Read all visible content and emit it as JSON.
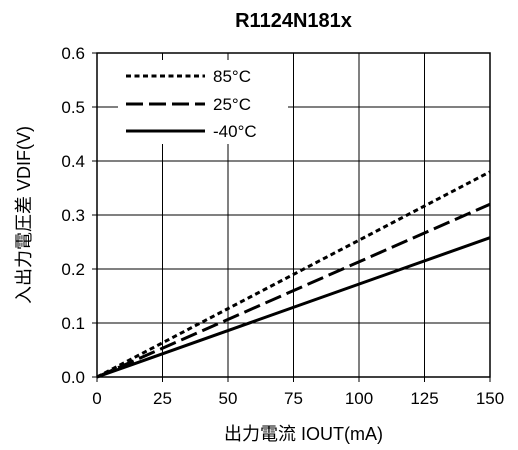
{
  "chart_data": {
    "type": "line",
    "title": "R1124N181x",
    "xlabel": "出力電流 IOUT(mA)",
    "ylabel": "入出力電圧差 VDIF(V)",
    "xlim": [
      0,
      150
    ],
    "ylim": [
      0,
      0.6
    ],
    "x_ticks": [
      0,
      25,
      50,
      75,
      100,
      125,
      150
    ],
    "y_ticks": [
      0.0,
      0.1,
      0.2,
      0.3,
      0.4,
      0.5,
      0.6
    ],
    "x_tick_labels": [
      "0",
      "25",
      "50",
      "75",
      "100",
      "125",
      "150"
    ],
    "y_tick_labels": [
      "0.0",
      "0.1",
      "0.2",
      "0.3",
      "0.4",
      "0.5",
      "0.6"
    ],
    "grid": true,
    "legend_position": "top-left",
    "series": [
      {
        "name": "85°C",
        "style": "dotted",
        "x": [
          0,
          150
        ],
        "y": [
          0,
          0.38
        ]
      },
      {
        "name": "25°C",
        "style": "dashed",
        "x": [
          0,
          150
        ],
        "y": [
          0,
          0.32
        ]
      },
      {
        "name": "-40°C",
        "style": "solid",
        "x": [
          0,
          150
        ],
        "y": [
          0,
          0.258
        ]
      }
    ]
  }
}
